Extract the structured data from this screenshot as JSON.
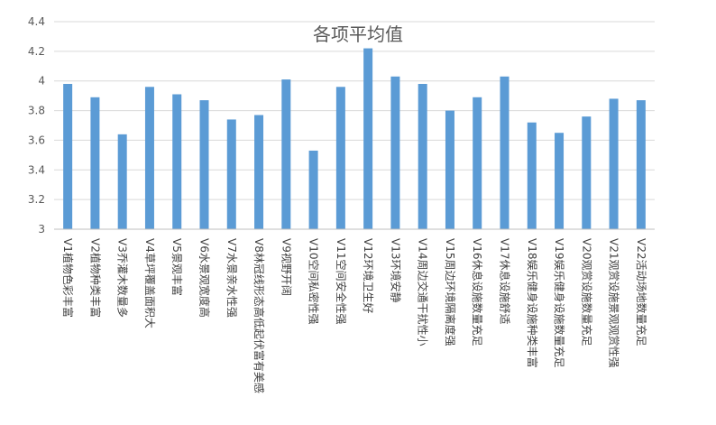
{
  "chart_data": {
    "type": "bar",
    "title": "各项平均值",
    "xlabel": "",
    "ylabel": "",
    "ylim": [
      3,
      4.4
    ],
    "yticks": [
      "3",
      "3.2",
      "3.4",
      "3.6",
      "3.8",
      "4",
      "4.2",
      "4.4"
    ],
    "grid": true,
    "legend": "none",
    "bar_color": "#5b9bd5",
    "categories": [
      "V1植物色彩丰富",
      "V2植物种类丰富",
      "V3乔灌木数量多",
      "V4草坪覆盖面积大",
      "V5景观丰富",
      "V6水景观宽度高",
      "V7水景亲水性强",
      "V8林冠线形态高低起伏富有美感",
      "V9视野开阔",
      "V10空间私密性强",
      "V11空间安全性强",
      "V12环境卫生好",
      "V13环境安静",
      "V14周边交通干扰性小",
      "V15周边环境隔离度强",
      "V16休息设施数量充足",
      "V17休息设施舒适",
      "V18娱乐健身设施种类丰富",
      "V19娱乐健身设施数量充足",
      "V20观赏设施数量充足",
      "V21观赏设施景观观赏性强",
      "V22活动场地数量充足"
    ],
    "values": [
      3.98,
      3.89,
      3.64,
      3.96,
      3.91,
      3.87,
      3.74,
      3.77,
      4.01,
      3.53,
      3.96,
      4.22,
      4.03,
      3.98,
      3.8,
      3.89,
      4.03,
      3.72,
      3.65,
      3.76,
      3.88,
      3.87
    ]
  }
}
